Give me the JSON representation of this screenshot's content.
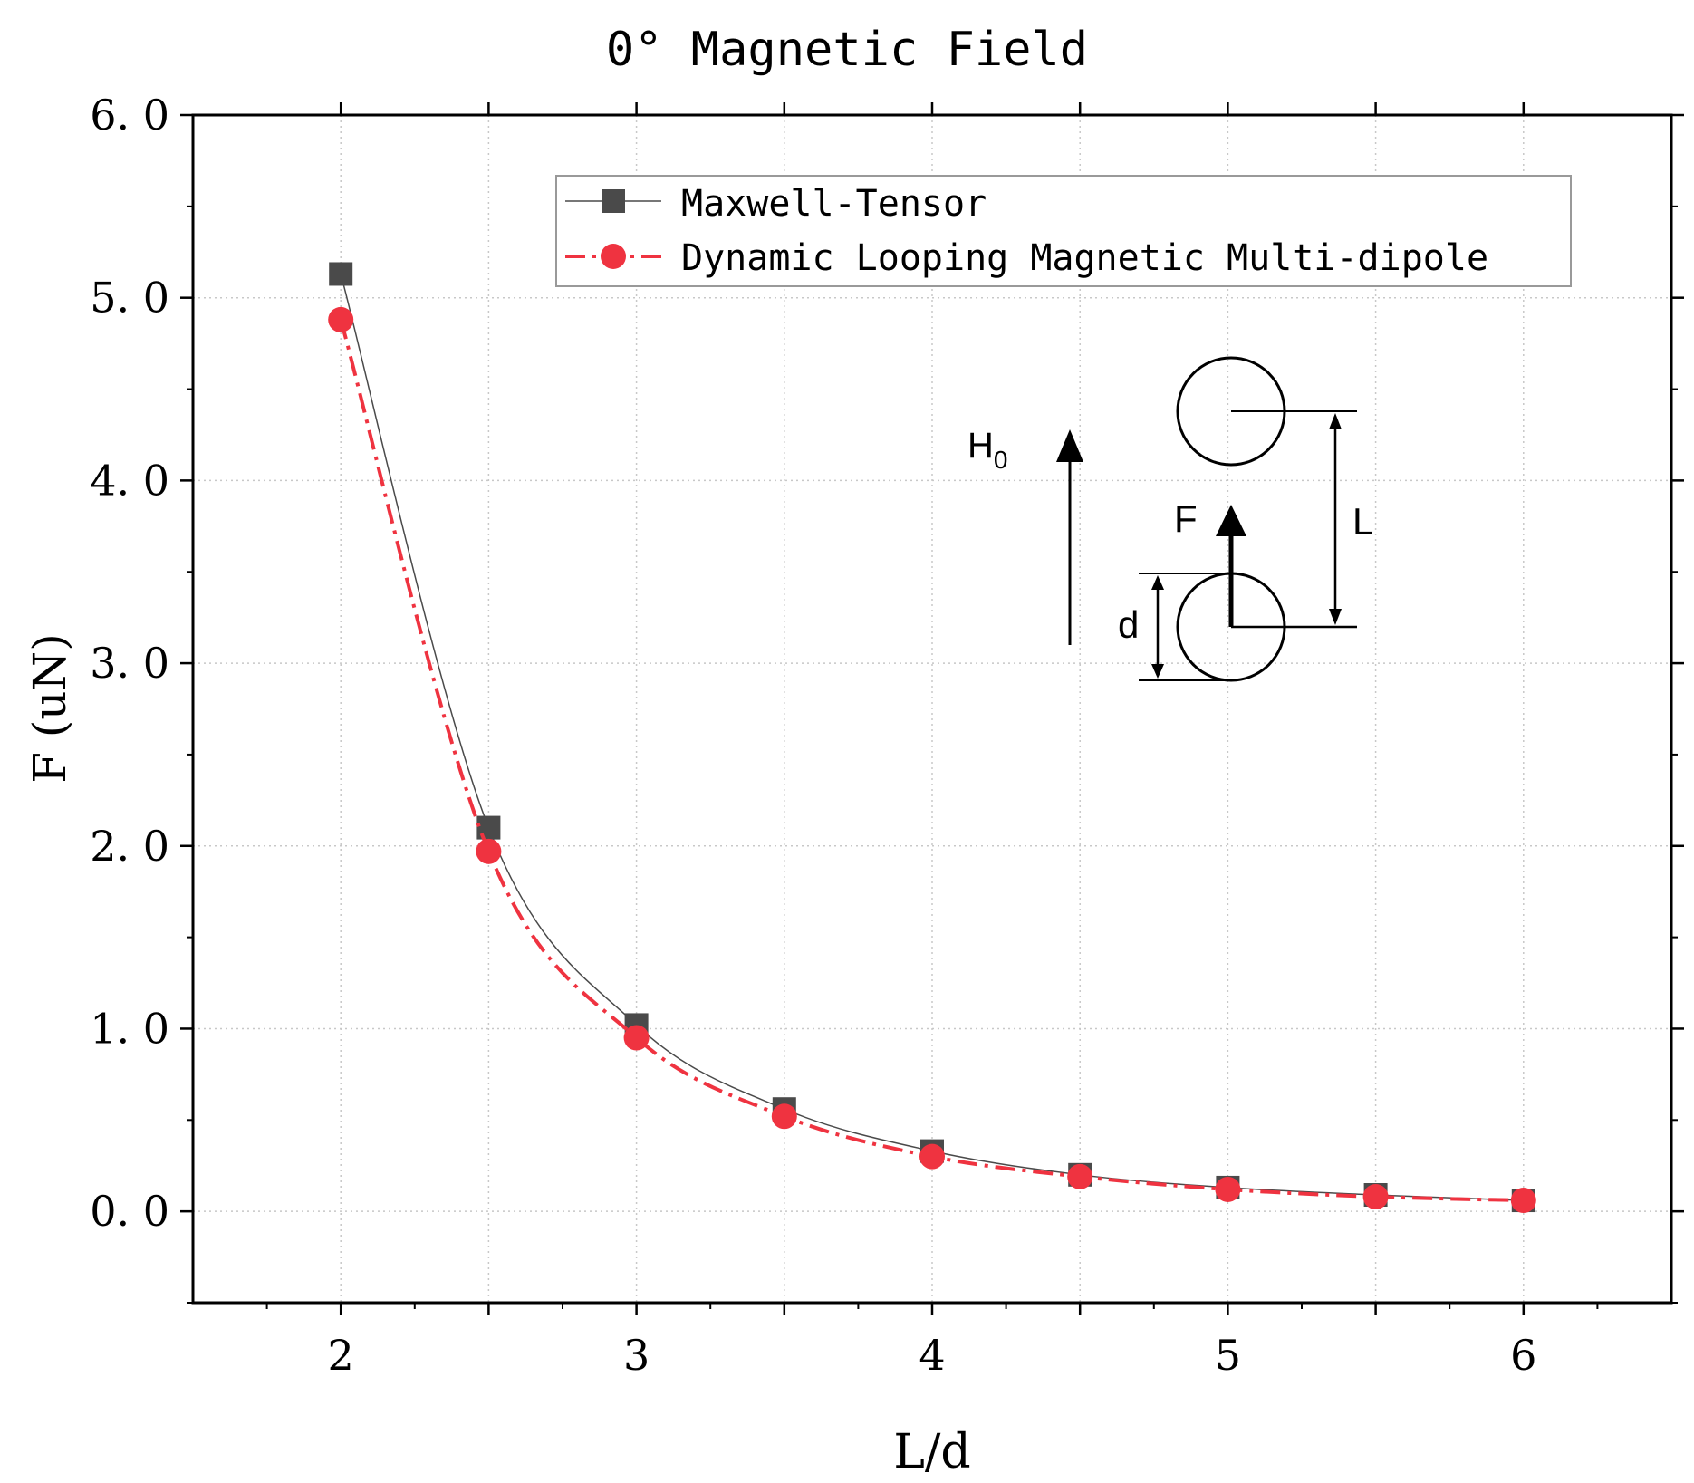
{
  "chart_data": {
    "type": "line",
    "title": "0° Magnetic Field",
    "xlabel": "L/d",
    "ylabel": "F  (uN)",
    "xlim": [
      1.5,
      6.5
    ],
    "ylim": [
      -0.5,
      6.0
    ],
    "xticks": [
      2,
      3,
      4,
      5,
      6
    ],
    "xtick_labels": [
      "2",
      "3",
      "4",
      "5",
      "6"
    ],
    "yticks": [
      0.0,
      1.0,
      2.0,
      3.0,
      4.0,
      5.0,
      6.0
    ],
    "ytick_labels": [
      "0. 0",
      "1. 0",
      "2. 0",
      "3. 0",
      "4. 0",
      "5. 0",
      "6. 0"
    ],
    "grid": true,
    "legend_position": "top-right",
    "x": [
      2,
      2.5,
      3,
      3.5,
      4,
      4.5,
      5,
      5.5,
      6
    ],
    "series": [
      {
        "name": "Maxwell-Tensor",
        "color": "#4a4a4a",
        "marker": "square",
        "line_style": "solid",
        "values": [
          5.13,
          2.1,
          1.02,
          0.56,
          0.33,
          0.2,
          0.13,
          0.09,
          0.06
        ]
      },
      {
        "name": "Dynamic Looping Magnetic Multi-dipole",
        "color": "#ef3340",
        "marker": "circle",
        "line_style": "dash-dot",
        "values": [
          4.88,
          1.97,
          0.95,
          0.52,
          0.3,
          0.19,
          0.12,
          0.08,
          0.06
        ]
      }
    ],
    "inset_diagram": {
      "field_label": "H",
      "field_subscript": "0",
      "force_label": "F",
      "spacing_label": "L",
      "diameter_label": "d"
    }
  }
}
